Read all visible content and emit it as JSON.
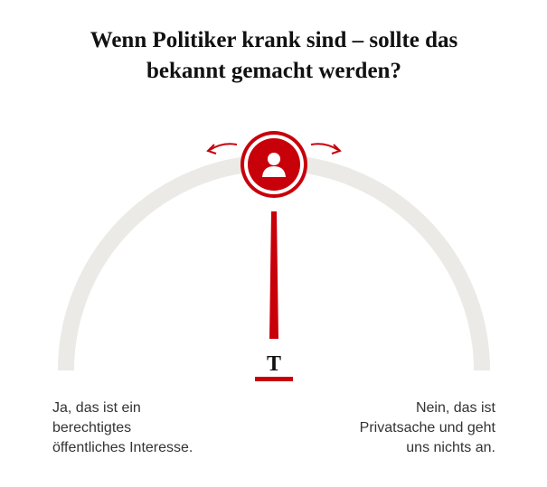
{
  "title": [
    "Wenn Politiker krank sind – sollte das",
    "bekannt gemacht werden?"
  ],
  "brand": "T",
  "left_answer": [
    "Ja, das ist ein",
    "berechtigtes",
    "öffentliches Interesse."
  ],
  "right_answer": [
    "Nein, das ist",
    "Privatsache und geht",
    "uns nichts an."
  ]
}
